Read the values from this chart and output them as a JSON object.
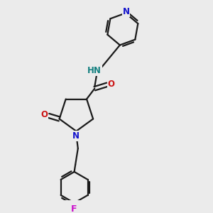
{
  "background_color": "#ebebeb",
  "bond_color": "#1a1a1a",
  "N_color": "#1414cc",
  "O_color": "#cc1414",
  "F_color": "#cc14cc",
  "H_color": "#148080",
  "figsize": [
    3.0,
    3.0
  ],
  "dpi": 100,
  "lw": 1.6,
  "fs": 8.5,
  "xlim": [
    0.1,
    0.9
  ],
  "ylim": [
    0.05,
    0.97
  ]
}
